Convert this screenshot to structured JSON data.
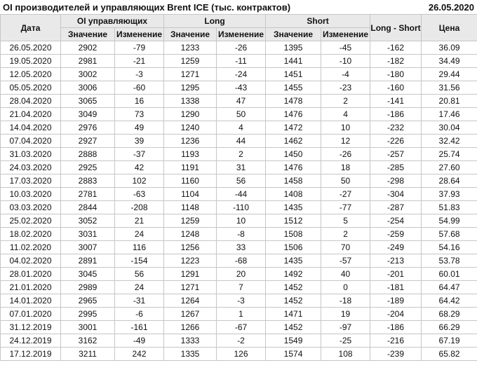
{
  "header": {
    "title": "OI производителей и управляющих Brent ICE (тыс. контрактов)",
    "date": "26.05.2020"
  },
  "table": {
    "columns": {
      "date": "Дата",
      "group_oi": "OI управляющих",
      "group_long": "Long",
      "group_short": "Short",
      "value": "Значение",
      "change": "Изменение",
      "long_short": "Long - Short",
      "price": "Цена"
    }
  },
  "colors": {
    "positive": "#149414",
    "negative": "#cc0000",
    "header_bg": "#e9e9e9",
    "border": "#c6c6c6"
  },
  "chart_data": {
    "type": "table",
    "title": "OI производителей и управляющих Brent ICE (тыс. контрактов)",
    "as_of_date": "26.05.2020",
    "columns": [
      "Дата",
      "OI управляющих Значение",
      "OI управляющих Изменение",
      "Long Значение",
      "Long Изменение",
      "Short Значение",
      "Short Изменение",
      "Long - Short",
      "Цена"
    ],
    "rows": [
      {
        "date": "26.05.2020",
        "oi": "2902",
        "oi_chg": "-79",
        "long": "1233",
        "long_chg": "-26",
        "short": "1395",
        "short_chg": "-45",
        "long_short": "-162",
        "price": "36.09"
      },
      {
        "date": "19.05.2020",
        "oi": "2981",
        "oi_chg": "-21",
        "long": "1259",
        "long_chg": "-11",
        "short": "1441",
        "short_chg": "-10",
        "long_short": "-182",
        "price": "34.49"
      },
      {
        "date": "12.05.2020",
        "oi": "3002",
        "oi_chg": "-3",
        "long": "1271",
        "long_chg": "-24",
        "short": "1451",
        "short_chg": "-4",
        "long_short": "-180",
        "price": "29.44"
      },
      {
        "date": "05.05.2020",
        "oi": "3006",
        "oi_chg": "-60",
        "long": "1295",
        "long_chg": "-43",
        "short": "1455",
        "short_chg": "-23",
        "long_short": "-160",
        "price": "31.56"
      },
      {
        "date": "28.04.2020",
        "oi": "3065",
        "oi_chg": "16",
        "long": "1338",
        "long_chg": "47",
        "short": "1478",
        "short_chg": "2",
        "long_short": "-141",
        "price": "20.81"
      },
      {
        "date": "21.04.2020",
        "oi": "3049",
        "oi_chg": "73",
        "long": "1290",
        "long_chg": "50",
        "short": "1476",
        "short_chg": "4",
        "long_short": "-186",
        "price": "17.46"
      },
      {
        "date": "14.04.2020",
        "oi": "2976",
        "oi_chg": "49",
        "long": "1240",
        "long_chg": "4",
        "short": "1472",
        "short_chg": "10",
        "long_short": "-232",
        "price": "30.04"
      },
      {
        "date": "07.04.2020",
        "oi": "2927",
        "oi_chg": "39",
        "long": "1236",
        "long_chg": "44",
        "short": "1462",
        "short_chg": "12",
        "long_short": "-226",
        "price": "32.42"
      },
      {
        "date": "31.03.2020",
        "oi": "2888",
        "oi_chg": "-37",
        "long": "1193",
        "long_chg": "2",
        "short": "1450",
        "short_chg": "-26",
        "long_short": "-257",
        "price": "25.74"
      },
      {
        "date": "24.03.2020",
        "oi": "2925",
        "oi_chg": "42",
        "long": "1191",
        "long_chg": "31",
        "short": "1476",
        "short_chg": "18",
        "long_short": "-285",
        "price": "27.60"
      },
      {
        "date": "17.03.2020",
        "oi": "2883",
        "oi_chg": "102",
        "long": "1160",
        "long_chg": "56",
        "short": "1458",
        "short_chg": "50",
        "long_short": "-298",
        "price": "28.64"
      },
      {
        "date": "10.03.2020",
        "oi": "2781",
        "oi_chg": "-63",
        "long": "1104",
        "long_chg": "-44",
        "short": "1408",
        "short_chg": "-27",
        "long_short": "-304",
        "price": "37.93"
      },
      {
        "date": "03.03.2020",
        "oi": "2844",
        "oi_chg": "-208",
        "long": "1148",
        "long_chg": "-110",
        "short": "1435",
        "short_chg": "-77",
        "long_short": "-287",
        "price": "51.83"
      },
      {
        "date": "25.02.2020",
        "oi": "3052",
        "oi_chg": "21",
        "long": "1259",
        "long_chg": "10",
        "short": "1512",
        "short_chg": "5",
        "long_short": "-254",
        "price": "54.99"
      },
      {
        "date": "18.02.2020",
        "oi": "3031",
        "oi_chg": "24",
        "long": "1248",
        "long_chg": "-8",
        "short": "1508",
        "short_chg": "2",
        "long_short": "-259",
        "price": "57.68"
      },
      {
        "date": "11.02.2020",
        "oi": "3007",
        "oi_chg": "116",
        "long": "1256",
        "long_chg": "33",
        "short": "1506",
        "short_chg": "70",
        "long_short": "-249",
        "price": "54.16"
      },
      {
        "date": "04.02.2020",
        "oi": "2891",
        "oi_chg": "-154",
        "long": "1223",
        "long_chg": "-68",
        "short": "1435",
        "short_chg": "-57",
        "long_short": "-213",
        "price": "53.78"
      },
      {
        "date": "28.01.2020",
        "oi": "3045",
        "oi_chg": "56",
        "long": "1291",
        "long_chg": "20",
        "short": "1492",
        "short_chg": "40",
        "long_short": "-201",
        "price": "60.01"
      },
      {
        "date": "21.01.2020",
        "oi": "2989",
        "oi_chg": "24",
        "long": "1271",
        "long_chg": "7",
        "short": "1452",
        "short_chg": "0",
        "long_short": "-181",
        "price": "64.47"
      },
      {
        "date": "14.01.2020",
        "oi": "2965",
        "oi_chg": "-31",
        "long": "1264",
        "long_chg": "-3",
        "short": "1452",
        "short_chg": "-18",
        "long_short": "-189",
        "price": "64.42"
      },
      {
        "date": "07.01.2020",
        "oi": "2995",
        "oi_chg": "-6",
        "long": "1267",
        "long_chg": "1",
        "short": "1471",
        "short_chg": "19",
        "long_short": "-204",
        "price": "68.29"
      },
      {
        "date": "31.12.2019",
        "oi": "3001",
        "oi_chg": "-161",
        "long": "1266",
        "long_chg": "-67",
        "short": "1452",
        "short_chg": "-97",
        "long_short": "-186",
        "price": "66.29"
      },
      {
        "date": "24.12.2019",
        "oi": "3162",
        "oi_chg": "-49",
        "long": "1333",
        "long_chg": "-2",
        "short": "1549",
        "short_chg": "-25",
        "long_short": "-216",
        "price": "67.19"
      },
      {
        "date": "17.12.2019",
        "oi": "3211",
        "oi_chg": "242",
        "long": "1335",
        "long_chg": "126",
        "short": "1574",
        "short_chg": "108",
        "long_short": "-239",
        "price": "65.82"
      }
    ]
  }
}
